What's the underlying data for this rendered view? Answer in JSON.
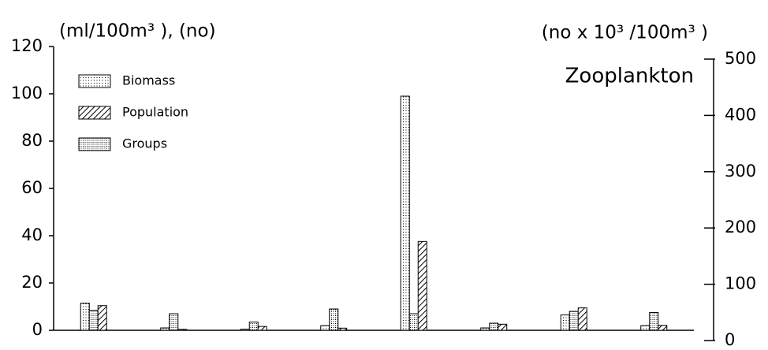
{
  "chart_data": {
    "type": "bar",
    "y_label": "(ml/100m³ ), (no)",
    "y2_label": "(no x 10³ /100m³ )",
    "annotation": "Zooplankton",
    "categories": [
      null,
      null,
      null,
      null,
      null,
      null,
      null,
      null
    ],
    "series": [
      {
        "name": "Biomass",
        "color": "#000000",
        "pattern": "light-dots",
        "values": [
          11.5,
          1,
          0.5,
          2,
          99,
          1,
          6.5,
          2
        ]
      },
      {
        "name": "Groups",
        "color": "#000000",
        "pattern": "dense-dots",
        "values": [
          8.5,
          7,
          3.5,
          9,
          7,
          3,
          8,
          7.5
        ]
      },
      {
        "name": "Population",
        "color": "#000000",
        "pattern": "hatch",
        "axis": "y2",
        "values": [
          62,
          20,
          25,
          22,
          176,
          29,
          58,
          27
        ]
      }
    ],
    "legend_order": [
      "Biomass",
      "Population",
      "Groups"
    ],
    "ylim": [
      0,
      120
    ],
    "yticks": [
      0,
      20,
      40,
      60,
      80,
      100,
      120
    ],
    "y2lim": [
      0,
      500
    ],
    "y2ticks": [
      0,
      100,
      200,
      300,
      400,
      500
    ],
    "legend": "upper left",
    "grid": false
  }
}
